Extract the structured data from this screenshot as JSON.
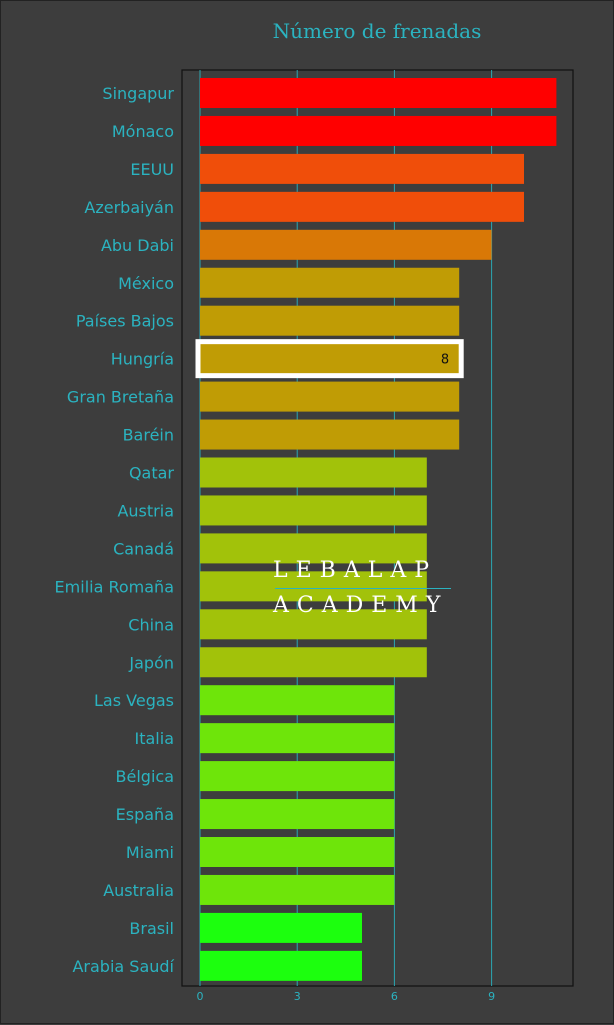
{
  "chart_data": {
    "type": "bar",
    "orientation": "horizontal",
    "title": "Número de frenadas",
    "xlabel": "",
    "ylabel": "",
    "xlim": [
      0,
      11.5
    ],
    "x_ticks": [
      "0",
      "3",
      "6",
      "9"
    ],
    "grid": true,
    "categories": [
      "Singapur",
      "Mónaco",
      "EEUU",
      "Azerbaiyán",
      "Abu Dabi",
      "México",
      "Países Bajos",
      "Hungría",
      "Gran Bretaña",
      "Baréin",
      "Qatar",
      "Austria",
      "Canadá",
      "Emilia Romaña",
      "China",
      "Japón",
      "Las Vegas",
      "Italia",
      "Bélgica",
      "España",
      "Miami",
      "Australia",
      "Brasil",
      "Arabia Saudí"
    ],
    "values": [
      11,
      11,
      10,
      10,
      9,
      8,
      8,
      8,
      8,
      8,
      7,
      7,
      7,
      7,
      7,
      7,
      6,
      6,
      6,
      6,
      6,
      6,
      5,
      5
    ],
    "bar_colors": [
      "#ff0000",
      "#ff0000",
      "#f04e0a",
      "#f04e0a",
      "#d97806",
      "#c09c05",
      "#c09c05",
      "#c09c05",
      "#c09c05",
      "#c09c05",
      "#a2c20a",
      "#a2c20a",
      "#a2c20a",
      "#a2c20a",
      "#a2c20a",
      "#a2c20a",
      "#6ee50a",
      "#6ee50a",
      "#6ee50a",
      "#6ee50a",
      "#6ee50a",
      "#6ee50a",
      "#1cff0e",
      "#1cff0e"
    ],
    "highlight": {
      "category": "Hungría",
      "label": "8"
    }
  },
  "watermark": {
    "line1": "LEBALAP",
    "line2": "ACADEMY"
  },
  "colors": {
    "background": "#3d3d3d",
    "accent": "#2bb3c0",
    "highlight_border": "#ffffff"
  }
}
